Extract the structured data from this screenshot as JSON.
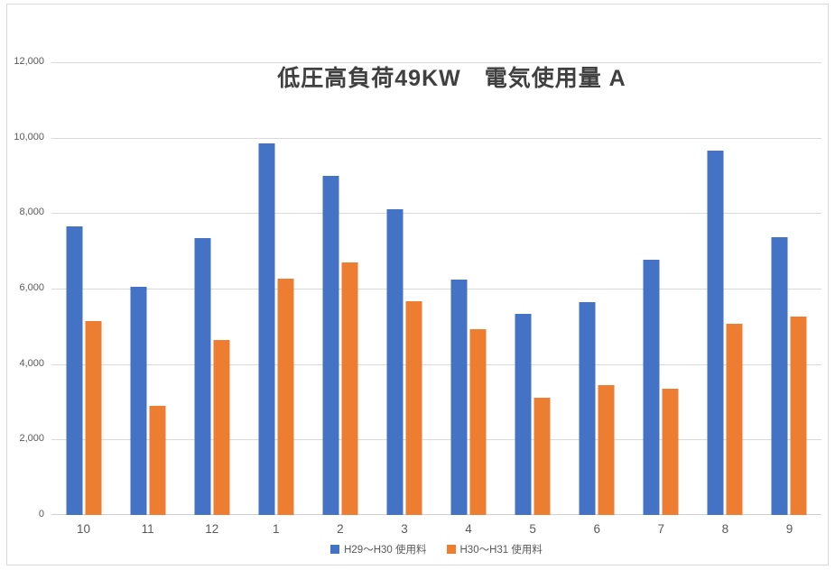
{
  "chart_data": {
    "type": "bar",
    "title": "低圧高負荷49KW　電気使用量 A",
    "categories": [
      "10",
      "11",
      "12",
      "1",
      "2",
      "3",
      "4",
      "5",
      "6",
      "7",
      "8",
      "9"
    ],
    "series": [
      {
        "name": "H29～H30 使用料",
        "color": "#4472C4",
        "values": [
          7660,
          6050,
          7330,
          9840,
          8980,
          8100,
          6240,
          5330,
          5630,
          6770,
          9660,
          7370
        ]
      },
      {
        "name": "H30～H31 使用料",
        "color": "#ED7D31",
        "values": [
          5130,
          2900,
          4630,
          6270,
          6690,
          5660,
          4930,
          3100,
          3450,
          3340,
          5070,
          5250
        ]
      }
    ],
    "xlabel": "",
    "ylabel": "",
    "ylim": [
      0,
      12000
    ],
    "ytick_step": 2000,
    "ytick_labels": [
      "0",
      "2,000",
      "4,000",
      "6,000",
      "8,000",
      "10,000",
      "12,000"
    ],
    "grid": true,
    "legend_position": "bottom"
  },
  "colors": {
    "gridline": "#D9D9D9",
    "axis_text": "#595959",
    "title_text": "#404040",
    "frame_border": "#D9D9D9",
    "background": "#FFFFFF"
  }
}
